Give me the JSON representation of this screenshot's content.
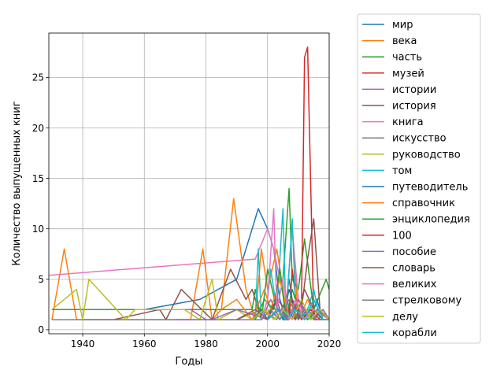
{
  "chart_data": {
    "type": "line",
    "title": "",
    "xlabel": "Годы",
    "ylabel": "Количество выпущенных книг",
    "xlim": [
      1929,
      2020
    ],
    "ylim": [
      -0.4,
      29.4
    ],
    "xticks": [
      1940,
      1960,
      1980,
      2000,
      2020
    ],
    "yticks": [
      0,
      5,
      10,
      15,
      20,
      25
    ],
    "grid": true,
    "legend_position": "outside-right",
    "series": [
      {
        "name": "мир",
        "color": "#1f77b4",
        "x": [
          1930,
          1960,
          1978,
          1990,
          1997,
          2000,
          2002,
          2004,
          2006,
          2008,
          2010,
          2012,
          2014,
          2016,
          2018,
          2020
        ],
        "y": [
          2,
          2,
          3,
          5,
          12,
          10,
          8,
          3,
          1,
          2,
          1,
          2,
          1,
          3,
          1,
          1
        ]
      },
      {
        "name": "века",
        "color": "#ff7f0e",
        "x": [
          1930,
          1934,
          1938,
          1950,
          1975,
          1979,
          1982,
          1985,
          1989,
          1993,
          1996,
          1998,
          2000,
          2003,
          2006,
          2008,
          2010,
          2013,
          2016,
          2020
        ],
        "y": [
          1,
          8,
          1,
          1,
          1,
          8,
          1,
          2,
          13,
          4,
          1,
          8,
          4,
          8,
          2,
          10,
          1,
          3,
          1,
          1
        ]
      },
      {
        "name": "часть",
        "color": "#2ca02c",
        "x": [
          1930,
          1995,
          1996,
          1998,
          2000,
          2003,
          2005,
          2007,
          2008,
          2010,
          2012,
          2015,
          2019,
          2020
        ],
        "y": [
          2,
          2,
          4,
          1,
          6,
          2,
          5,
          14,
          5,
          4,
          9,
          2,
          5,
          4
        ]
      },
      {
        "name": "музей",
        "color": "#d62728",
        "x": [
          2005,
          2007,
          2008,
          2010,
          2011,
          2012,
          2013,
          2015,
          2017,
          2020
        ],
        "y": [
          1,
          1,
          6,
          1,
          2,
          27,
          28,
          1,
          1,
          1
        ]
      },
      {
        "name": "истории",
        "color": "#9467bd",
        "x": [
          1960,
          1975,
          1980,
          1998,
          2001,
          2004,
          2006,
          2008,
          2010,
          2013,
          2016,
          2020
        ],
        "y": [
          2,
          2,
          1,
          1,
          3,
          1,
          2,
          1,
          3,
          1,
          2,
          1
        ]
      },
      {
        "name": "история",
        "color": "#8c564b",
        "x": [
          1940,
          1950,
          1965,
          1967,
          1972,
          1982,
          1988,
          1993,
          1995,
          1998,
          2001,
          2003,
          2005,
          2007,
          2009,
          2011,
          2013,
          2015,
          2017,
          2020
        ],
        "y": [
          1,
          1,
          2,
          1,
          4,
          1,
          6,
          3,
          4,
          1,
          2,
          3,
          1,
          5,
          1,
          2,
          7,
          11,
          2,
          1
        ]
      },
      {
        "name": "книга",
        "color": "#e377c2",
        "x": [
          1929,
          1996,
          2000,
          2002,
          2004,
          2006,
          2008,
          2010,
          2012,
          2014,
          2016,
          2020
        ],
        "y": [
          5.4,
          7,
          10,
          8,
          5,
          2,
          10,
          3,
          1,
          2,
          1,
          1
        ]
      },
      {
        "name": "искусство",
        "color": "#7f7f7f",
        "x": [
          1930,
          1990,
          1998,
          2003,
          2006,
          2009,
          2012,
          2015,
          2018,
          2020
        ],
        "y": [
          1,
          1,
          2,
          1,
          3,
          1,
          2,
          1,
          2,
          1
        ]
      },
      {
        "name": "руководство",
        "color": "#bcbd22",
        "x": [
          1930,
          1938,
          1940,
          1942,
          1954,
          1957,
          1973,
          1978,
          1982,
          1984,
          1990,
          1995,
          2000,
          2004,
          2008,
          2012,
          2016,
          2020
        ],
        "y": [
          2,
          4,
          1,
          5,
          1,
          2,
          2,
          1,
          5,
          1,
          2,
          1,
          2,
          1,
          3,
          1,
          2,
          1
        ]
      },
      {
        "name": "том",
        "color": "#17becf",
        "x": [
          1996,
          1997,
          1998,
          2000,
          2001,
          2003,
          2005,
          2006,
          2008,
          2009,
          2011,
          2013,
          2015,
          2017,
          2020
        ],
        "y": [
          1,
          8,
          1,
          3,
          6,
          2,
          12,
          1,
          11,
          3,
          1,
          2,
          4,
          1,
          1
        ]
      },
      {
        "name": "путеводитель",
        "color": "#1f77b4",
        "x": [
          1995,
          1998,
          2000,
          2002,
          2005,
          2007,
          2009,
          2012,
          2015,
          2018,
          2020
        ],
        "y": [
          1,
          2,
          1,
          3,
          1,
          4,
          2,
          1,
          3,
          1,
          1
        ]
      },
      {
        "name": "справочник",
        "color": "#ff7f0e",
        "x": [
          1985,
          1990,
          1995,
          1999,
          2001,
          2004,
          2007,
          2010,
          2014,
          2018,
          2020
        ],
        "y": [
          2,
          3,
          1,
          4,
          2,
          5,
          1,
          3,
          1,
          2,
          1
        ]
      },
      {
        "name": "энциклопедия",
        "color": "#2ca02c",
        "x": [
          1996,
          1999,
          2002,
          2004,
          2006,
          2008,
          2010,
          2013,
          2016,
          2020
        ],
        "y": [
          1,
          3,
          2,
          6,
          1,
          4,
          2,
          1,
          2,
          1
        ]
      },
      {
        "name": "100",
        "color": "#d62728",
        "x": [
          2000,
          2003,
          2006,
          2008,
          2011,
          2014,
          2017,
          2020
        ],
        "y": [
          1,
          2,
          1,
          3,
          1,
          2,
          1,
          1
        ]
      },
      {
        "name": "пособие",
        "color": "#9467bd",
        "x": [
          1970,
          1982,
          1990,
          2000,
          2004,
          2007,
          2010,
          2014,
          2018,
          2020
        ],
        "y": [
          1,
          1,
          2,
          1,
          2,
          1,
          3,
          1,
          2,
          1
        ]
      },
      {
        "name": "словарь",
        "color": "#8c564b",
        "x": [
          1990,
          1996,
          2000,
          2003,
          2006,
          2009,
          2012,
          2015,
          2018,
          2020
        ],
        "y": [
          1,
          2,
          1,
          3,
          2,
          1,
          4,
          2,
          1,
          1
        ]
      },
      {
        "name": "великих",
        "color": "#e377c2",
        "x": [
          1998,
          2000,
          2002,
          2003,
          2005,
          2007,
          2009,
          2012,
          2015,
          2020
        ],
        "y": [
          1,
          3,
          12,
          2,
          5,
          1,
          3,
          1,
          2,
          1
        ]
      },
      {
        "name": "стрелковому",
        "color": "#7f7f7f",
        "x": [
          1998,
          2001,
          2004,
          2007,
          2010,
          2013,
          2016,
          2020
        ],
        "y": [
          1,
          2,
          1,
          3,
          1,
          2,
          1,
          1
        ]
      },
      {
        "name": "делу",
        "color": "#bcbd22",
        "x": [
          1995,
          1999,
          2002,
          2005,
          2008,
          2011,
          2014,
          2017,
          2020
        ],
        "y": [
          1,
          2,
          1,
          2,
          1,
          3,
          1,
          2,
          1
        ]
      },
      {
        "name": "корабли",
        "color": "#17becf",
        "x": [
          2000,
          2003,
          2006,
          2009,
          2012,
          2015,
          2018,
          2020
        ],
        "y": [
          1,
          2,
          1,
          2,
          1,
          3,
          1,
          1
        ]
      }
    ]
  }
}
